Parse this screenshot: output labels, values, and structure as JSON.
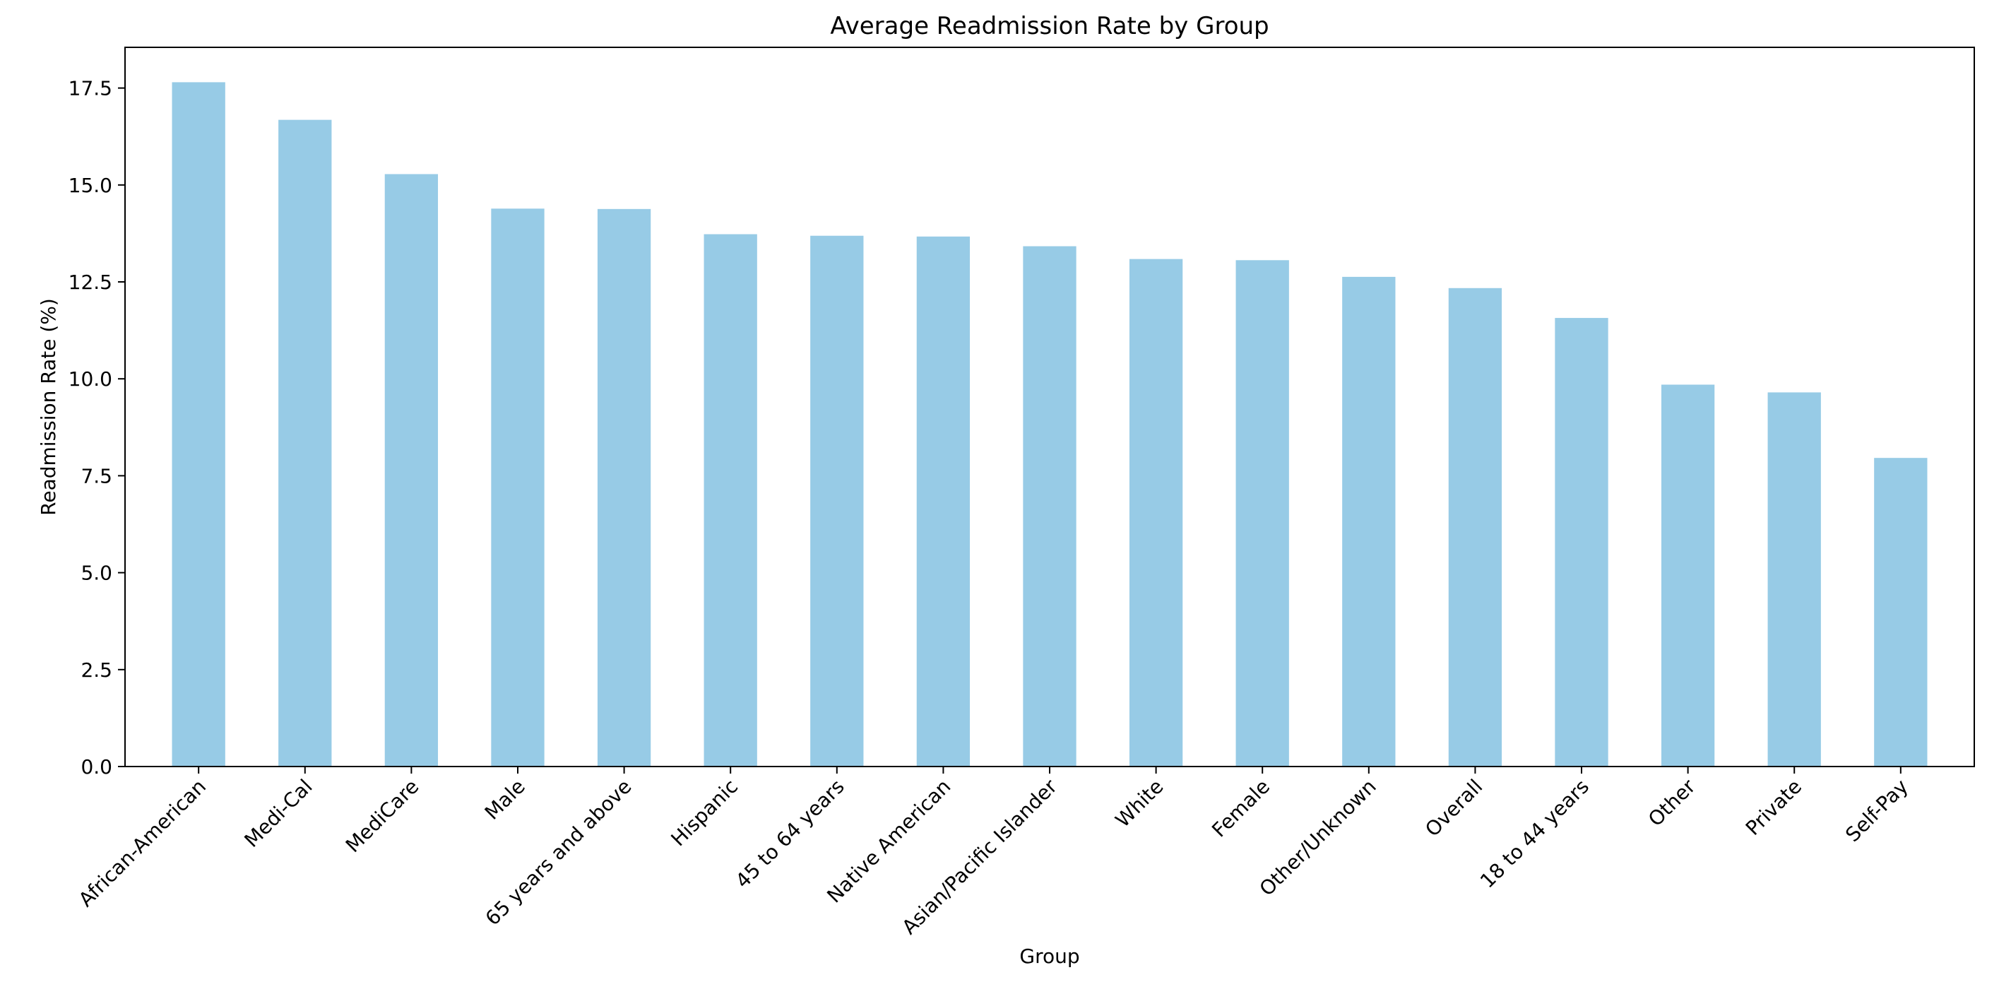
{
  "chart_data": {
    "type": "bar",
    "title": "Average Readmission Rate by Group",
    "xlabel": "Group",
    "ylabel": "Readmission Rate (%)",
    "categories": [
      "African-American",
      "Medi-Cal",
      "MediCare",
      "Male",
      "65 years and above",
      "Hispanic",
      "45 to 64 years",
      "Native American",
      "Asian/Pacific Islander",
      "White",
      "Female",
      "Other/Unknown",
      "Overall",
      "18 to 44 years",
      "Other",
      "Private",
      "Self-Pay"
    ],
    "values": [
      17.65,
      16.68,
      15.28,
      14.39,
      14.38,
      13.73,
      13.69,
      13.67,
      13.42,
      13.09,
      13.06,
      12.63,
      12.34,
      11.57,
      9.85,
      9.65,
      7.96
    ],
    "ylim": [
      0,
      18.55
    ],
    "yticks": [
      0.0,
      2.5,
      5.0,
      7.5,
      10.0,
      12.5,
      15.0,
      17.5
    ],
    "ytick_labels": [
      "0.0",
      "2.5",
      "5.0",
      "7.5",
      "10.0",
      "12.5",
      "15.0",
      "17.5"
    ],
    "tick_label_rotation": 45,
    "grid": false,
    "legend": "none",
    "bar_color": "#97cbe6"
  }
}
